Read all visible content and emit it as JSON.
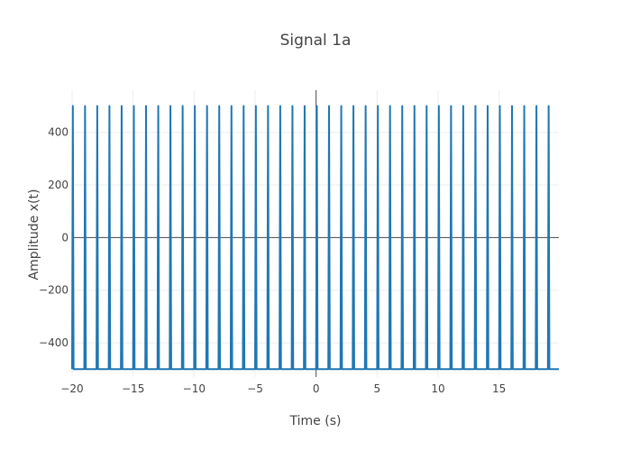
{
  "chart_data": {
    "type": "line",
    "title": "Signal 1a",
    "xlabel": "Time (s)",
    "ylabel": "Amplitude x(t)",
    "xlim": [
      -20,
      19.9
    ],
    "ylim": [
      -530,
      560
    ],
    "x_ticks": [
      -20,
      -15,
      -10,
      -5,
      0,
      5,
      10,
      15
    ],
    "x_tick_labels": [
      "−20",
      "−15",
      "−10",
      "−5",
      "0",
      "5",
      "10",
      "15"
    ],
    "y_ticks": [
      -400,
      -200,
      0,
      200,
      400
    ],
    "y_tick_labels": [
      "−400",
      "−200",
      "0",
      "200",
      "400"
    ],
    "grid": true,
    "legend": "none",
    "series_color": "#1f77b4",
    "series": [
      {
        "period": 1,
        "pulse_width": 0.12,
        "low": -500,
        "high": 500,
        "x_start": -20,
        "x_end": 19.9
      }
    ]
  }
}
